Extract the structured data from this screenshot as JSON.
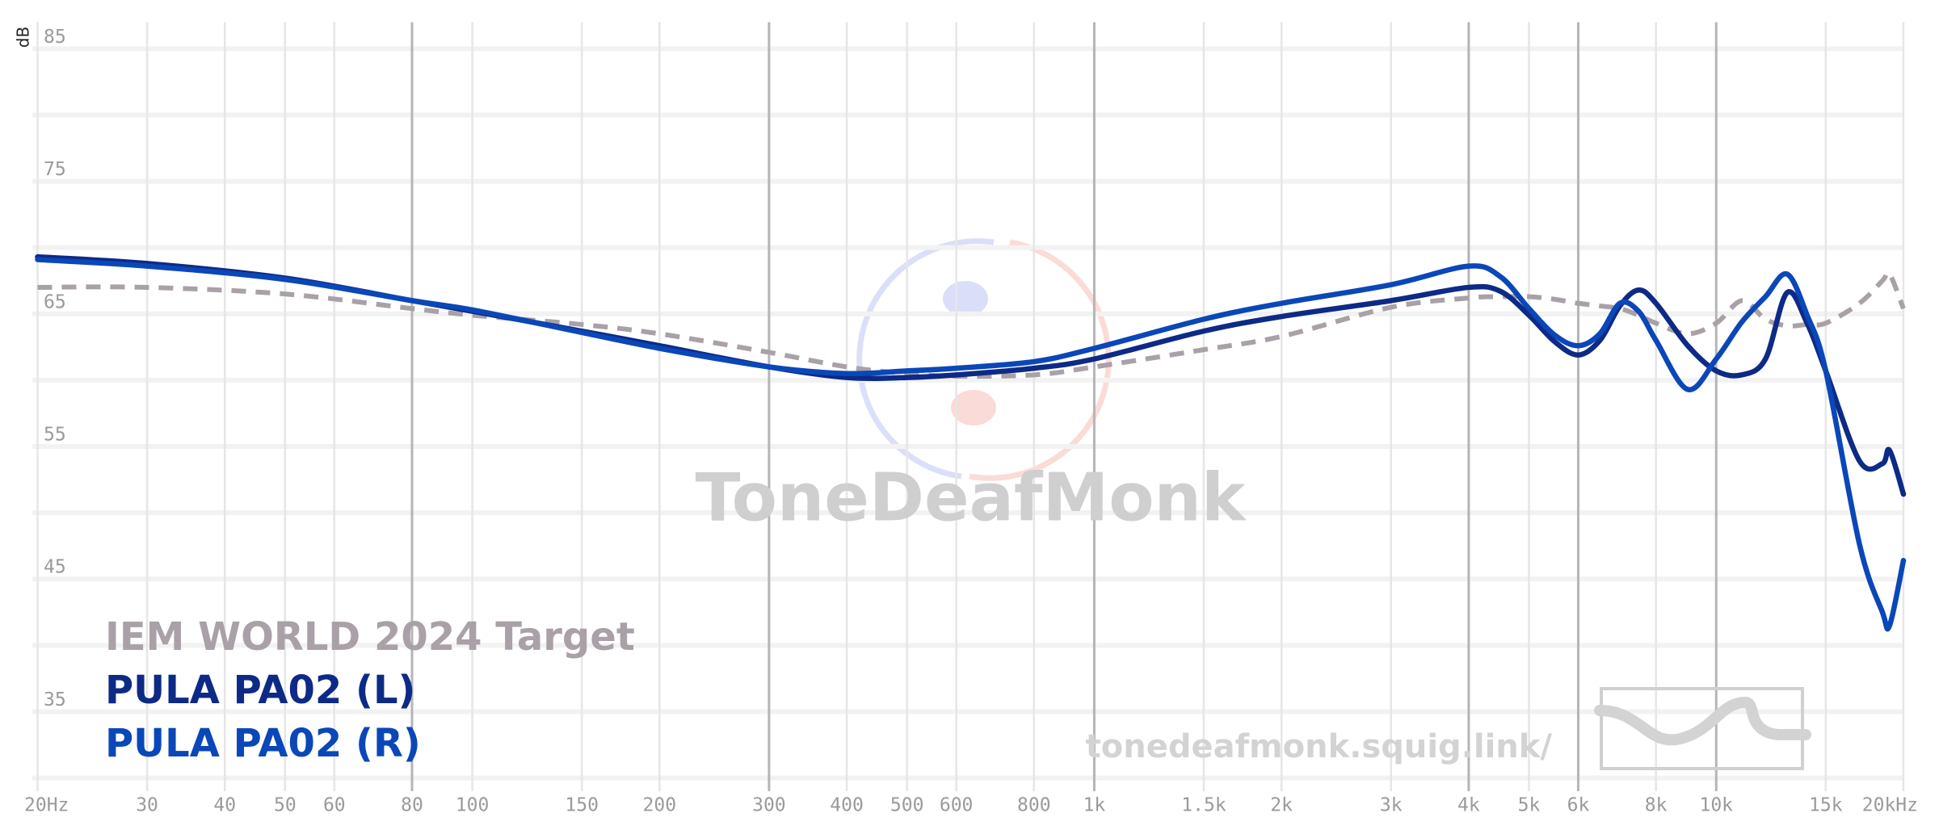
{
  "chart_data": {
    "type": "line",
    "y_label": "dB",
    "x_scale": "log",
    "grid": true,
    "xlim": [
      20,
      20000
    ],
    "ylim": [
      29,
      87
    ],
    "xticks": [
      {
        "value": 20,
        "label": "20Hz"
      },
      30,
      40,
      50,
      60,
      80,
      100,
      150,
      200,
      300,
      400,
      500,
      600,
      800,
      {
        "value": 1000,
        "label": "1k"
      },
      {
        "value": 1500,
        "label": "1.5k"
      },
      {
        "value": 2000,
        "label": "2k"
      },
      {
        "value": 3000,
        "label": "3k"
      },
      {
        "value": 4000,
        "label": "4k"
      },
      {
        "value": 5000,
        "label": "5k"
      },
      {
        "value": 6000,
        "label": "6k"
      },
      {
        "value": 8000,
        "label": "8k"
      },
      {
        "value": 10000,
        "label": "10k"
      },
      {
        "value": 15000,
        "label": "15k"
      },
      {
        "value": 20000,
        "label": "20kHz"
      }
    ],
    "xticks_emphasized": [
      80,
      300,
      1000,
      4000,
      6000,
      10000
    ],
    "yticks": [
      35,
      45,
      55,
      65,
      75,
      85
    ],
    "yminor": [
      30,
      40,
      50,
      60,
      70,
      80
    ],
    "x": [
      20,
      30,
      50,
      80,
      100,
      150,
      200,
      300,
      400,
      500,
      600,
      800,
      1000,
      1500,
      2000,
      3000,
      4000,
      4500,
      5000,
      5500,
      6000,
      6500,
      7000,
      7500,
      8000,
      9000,
      10000,
      11000,
      12000,
      13000,
      14000,
      15000,
      17000,
      18500,
      19000,
      20000
    ],
    "series": [
      {
        "name": "IEM WORLD 2024 Target",
        "color": "#a9a1a7",
        "dashed": true,
        "values": [
          67.0,
          67.0,
          66.5,
          65.4,
          64.9,
          64.2,
          63.5,
          62.1,
          61.0,
          60.5,
          60.3,
          60.4,
          61.0,
          62.3,
          63.3,
          65.5,
          66.2,
          66.3,
          66.3,
          66.1,
          65.8,
          65.6,
          65.4,
          64.9,
          64.3,
          63.5,
          64.3,
          66.0,
          64.6,
          64.1,
          64.2,
          64.3,
          65.8,
          67.5,
          68.0,
          65.4
        ]
      },
      {
        "name": "PULA PA02 (L)",
        "color": "#0d2a86",
        "dashed": false,
        "values": [
          69.3,
          68.8,
          67.7,
          66.0,
          65.2,
          63.7,
          62.6,
          61.0,
          60.2,
          60.2,
          60.4,
          60.9,
          61.6,
          63.7,
          64.8,
          66.0,
          67.0,
          66.7,
          64.9,
          62.9,
          61.9,
          63.0,
          65.6,
          66.8,
          65.8,
          62.6,
          60.7,
          60.4,
          61.6,
          66.6,
          64.3,
          60.7,
          53.9,
          53.7,
          54.7,
          51.4
        ]
      },
      {
        "name": "PULA PA02 (R)",
        "color": "#0a47b8",
        "dashed": false,
        "values": [
          69.1,
          68.6,
          67.6,
          66.0,
          65.3,
          63.6,
          62.4,
          61.0,
          60.5,
          60.7,
          60.9,
          61.4,
          62.4,
          64.6,
          65.8,
          67.2,
          68.6,
          67.8,
          65.4,
          63.4,
          62.6,
          63.5,
          65.8,
          65.2,
          63.0,
          59.3,
          61.6,
          64.4,
          66.3,
          68.0,
          64.9,
          60.7,
          47.6,
          42.5,
          41.5,
          46.4
        ]
      }
    ],
    "watermark": "ToneDeafMonk",
    "source": "tonedeafmonk.squig.link/"
  }
}
